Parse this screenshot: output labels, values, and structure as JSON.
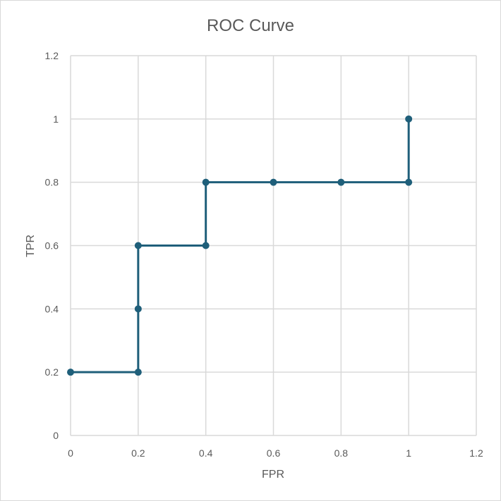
{
  "chart_data": {
    "type": "line",
    "title": "ROC Curve",
    "xlabel": "FPR",
    "ylabel": "TPR",
    "xlim": [
      0,
      1.2
    ],
    "ylim": [
      0,
      1.2
    ],
    "x_ticks": [
      0,
      0.2,
      0.4,
      0.6,
      0.8,
      1,
      1.2
    ],
    "y_ticks": [
      0,
      0.2,
      0.4,
      0.6,
      0.8,
      1,
      1.2
    ],
    "x_tick_labels": [
      "0",
      "0.2",
      "0.4",
      "0.6",
      "0.8",
      "1",
      "1.2"
    ],
    "y_tick_labels": [
      "0",
      "0.2",
      "0.4",
      "0.6",
      "0.8",
      "1",
      "1.2"
    ],
    "grid": true,
    "series": [
      {
        "color": "#1f5f7a",
        "marker": "circle",
        "points": [
          {
            "x": 0,
            "y": 0.2
          },
          {
            "x": 0.2,
            "y": 0.2
          },
          {
            "x": 0.2,
            "y": 0.4
          },
          {
            "x": 0.2,
            "y": 0.6
          },
          {
            "x": 0.4,
            "y": 0.6
          },
          {
            "x": 0.4,
            "y": 0.8
          },
          {
            "x": 0.6,
            "y": 0.8
          },
          {
            "x": 0.8,
            "y": 0.8
          },
          {
            "x": 1,
            "y": 0.8
          },
          {
            "x": 1,
            "y": 1
          }
        ]
      }
    ]
  }
}
